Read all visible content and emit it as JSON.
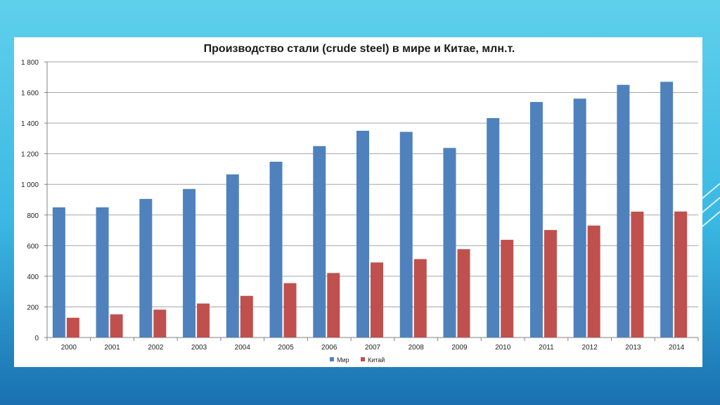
{
  "chart_data": {
    "type": "bar",
    "title": "Производство стали (crude steel) в мире и Китае, млн.т.",
    "categories": [
      "2000",
      "2001",
      "2002",
      "2003",
      "2004",
      "2005",
      "2006",
      "2007",
      "2008",
      "2009",
      "2010",
      "2011",
      "2012",
      "2013",
      "2014"
    ],
    "series": [
      {
        "name": "Мир",
        "color": "#4f81bd",
        "values": [
          850,
          850,
          905,
          970,
          1065,
          1148,
          1250,
          1350,
          1343,
          1238,
          1433,
          1538,
          1560,
          1650,
          1670
        ]
      },
      {
        "name": "Китай",
        "color": "#c0504d",
        "values": [
          129,
          151,
          182,
          222,
          272,
          355,
          421,
          490,
          512,
          577,
          638,
          702,
          731,
          822,
          823
        ]
      }
    ],
    "yticks": [
      "0",
      "200",
      "400",
      "600",
      "800",
      "1 000",
      "1 200",
      "1 400",
      "1 600",
      "1 800"
    ],
    "ytick_values": [
      0,
      200,
      400,
      600,
      800,
      1000,
      1200,
      1400,
      1600,
      1800
    ],
    "ylim": [
      0,
      1800
    ],
    "grid": true,
    "legend_position": "bottom-center"
  }
}
